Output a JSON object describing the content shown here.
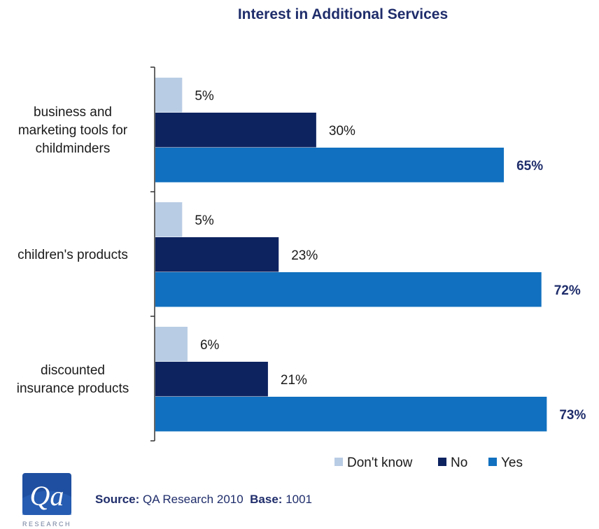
{
  "chart_data": {
    "type": "bar",
    "orientation": "horizontal",
    "title": "Interest in Additional Services",
    "categories": [
      [
        "business and",
        "marketing tools for",
        "childminders"
      ],
      [
        "children's products"
      ],
      [
        "discounted",
        "insurance products"
      ]
    ],
    "series": [
      {
        "name": "Don't know",
        "values": [
          5,
          5,
          6
        ],
        "labels": [
          "5%",
          "5%",
          "6%"
        ],
        "color": "#b8cce4"
      },
      {
        "name": "No",
        "values": [
          30,
          23,
          21
        ],
        "labels": [
          "30%",
          "23%",
          "21%"
        ],
        "color": "#0d2360"
      },
      {
        "name": "Yes",
        "values": [
          65,
          72,
          73
        ],
        "labels": [
          "65%",
          "72%",
          "73%"
        ],
        "color": "#1170bf"
      }
    ],
    "xlim": [
      0,
      80
    ],
    "legend_position": "bottom-right",
    "grid": false
  },
  "footer": {
    "logo_text": "Qa",
    "logo_subtext": "RESEARCH",
    "source_label": "Source:",
    "source_value": "QA Research 2010",
    "base_label": "Base:",
    "base_value": "1001"
  }
}
